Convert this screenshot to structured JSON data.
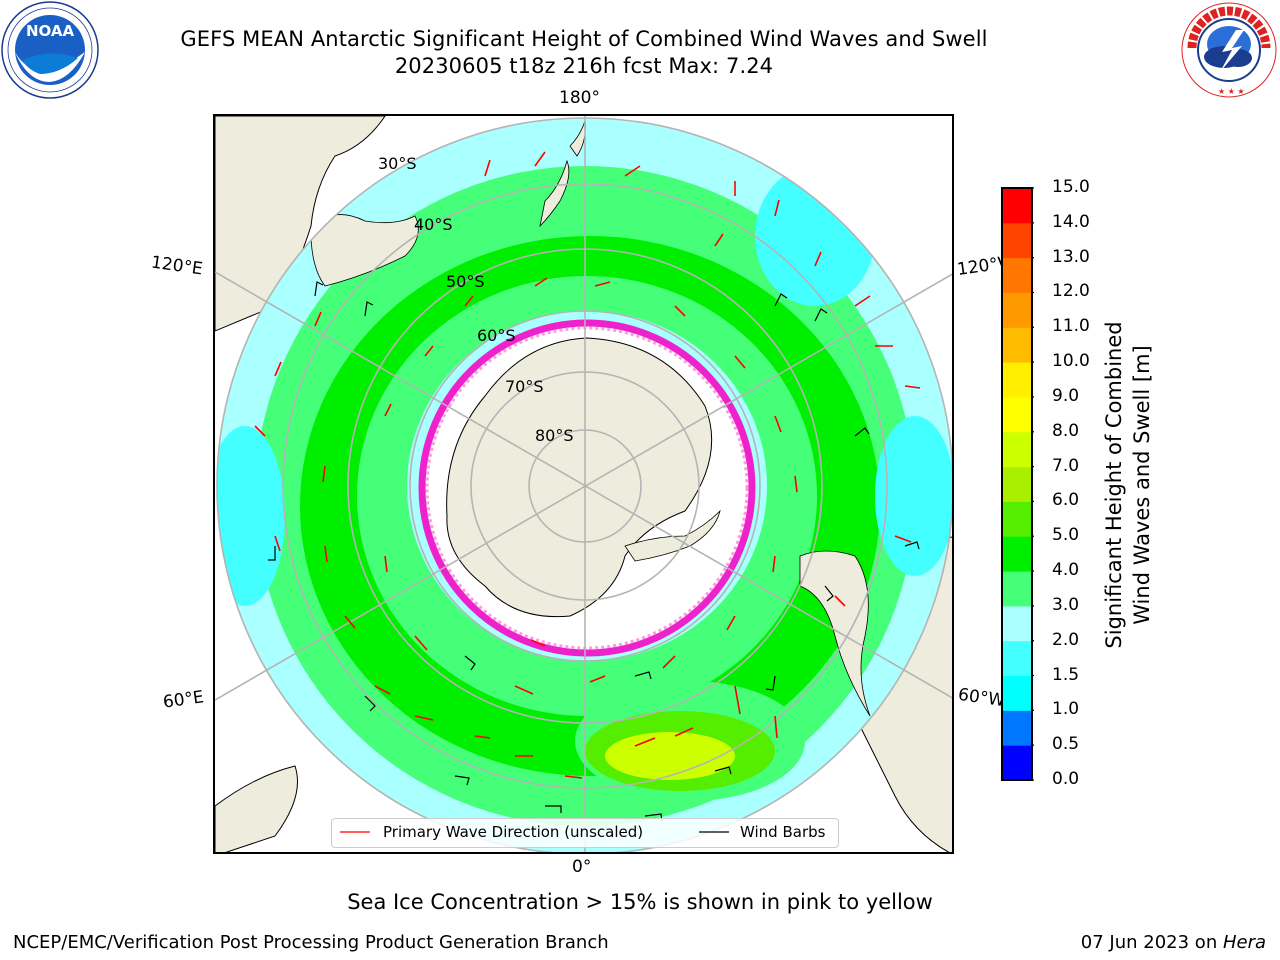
{
  "title": {
    "line1": "GEFS MEAN Antarctic Significant Height of Combined Wind Waves and Swell",
    "line2": "20230605 t18z 216h fcst   Max: 7.24"
  },
  "logos": {
    "left": {
      "icon": "noaa-logo",
      "text": "NOAA",
      "ring_text": "NATIONAL OCEANIC AND ATMOSPHERIC ADMINISTRATION · U.S. DEPARTMENT OF COMMERCE"
    },
    "right": {
      "icon": "nws-logo",
      "ring_text": "NATIONAL WEATHER SERVICE"
    }
  },
  "map": {
    "projection": "south-polar-stereographic",
    "longitude_labels": {
      "top": "180°",
      "bottom": "0°",
      "left_upper": "120°E",
      "left_lower": "60°E",
      "right_upper": "120°W",
      "right_lower": "60°W"
    },
    "latitude_labels": [
      "30°S",
      "40°S",
      "50°S",
      "60°S",
      "70°S",
      "80°S"
    ],
    "colors": {
      "land": "#eeecdc",
      "ice_edge": "#ee22cc",
      "wave_arrow": "#ff0000",
      "wind_barb": "#000000",
      "grid": "#b4b4b4"
    }
  },
  "colorbar": {
    "label_line1": "Significant Height of Combined",
    "label_line2": "Wind Waves and Swell [m]",
    "ticks": [
      "15.0",
      "14.0",
      "13.0",
      "12.0",
      "11.0",
      "10.0",
      "9.0",
      "8.0",
      "7.0",
      "6.0",
      "5.0",
      "4.0",
      "3.0",
      "2.0",
      "1.5",
      "1.0",
      "0.5",
      "0.0"
    ],
    "colors_bottom_to_top": [
      "#0000ff",
      "#0077ff",
      "#00ffff",
      "#44ffff",
      "#aaffff",
      "#44ff77",
      "#00ee00",
      "#55ee00",
      "#aaee00",
      "#ccff00",
      "#ffff00",
      "#ffee00",
      "#ffbb00",
      "#ff9900",
      "#ff7700",
      "#ff4400",
      "#ff0000"
    ]
  },
  "legend": {
    "primary_wave": "Primary Wave Direction (unscaled)",
    "wind_barbs": "Wind Barbs"
  },
  "sea_ice_note": "Sea Ice Concentration > 15% is shown in pink to yellow",
  "footer": {
    "left": "NCEP/EMC/Verification Post Processing Product Generation Branch",
    "right_date": "07 Jun 2023 on ",
    "right_host": "Hera"
  }
}
